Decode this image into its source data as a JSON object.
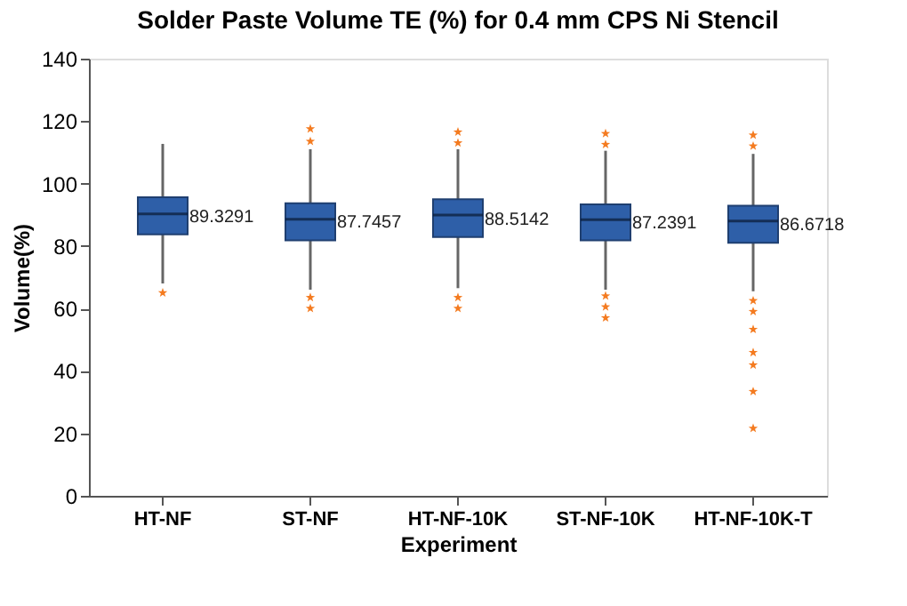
{
  "chart_data": {
    "type": "box",
    "title": "Solder Paste Volume TE (%) for 0.4 mm CPS Ni Stencil",
    "xlabel": "Experiment",
    "ylabel": "Volume(%)",
    "categories": [
      "HT-NF",
      "ST-NF",
      "HT-NF-10K",
      "ST-NF-10K",
      "HT-NF-10K-T"
    ],
    "series": [
      {
        "color": "#2e5fa8",
        "boxes": [
          {
            "low": 68,
            "q1": 83.7,
            "median": 90.3,
            "q3": 95.6,
            "high": 112.7
          },
          {
            "low": 66,
            "q1": 81.8,
            "median": 88.6,
            "q3": 93.7,
            "high": 111
          },
          {
            "low": 66.5,
            "q1": 82.9,
            "median": 89.9,
            "q3": 95,
            "high": 111
          },
          {
            "low": 66,
            "q1": 81.8,
            "median": 88.4,
            "q3": 93.3,
            "high": 110.5
          },
          {
            "low": 65.5,
            "q1": 81,
            "median": 88,
            "q3": 92.9,
            "high": 109.5
          }
        ]
      },
      {
        "type": "scatter",
        "color": "#f47b20",
        "x": [
          "HT-NF",
          "ST-NF",
          "ST-NF",
          "ST-NF",
          "ST-NF",
          "HT-NF-10K",
          "HT-NF-10K",
          "HT-NF-10K",
          "HT-NF-10K",
          "ST-NF-10K",
          "ST-NF-10K",
          "ST-NF-10K",
          "ST-NF-10K",
          "ST-NF-10K",
          "HT-NF-10K-T",
          "HT-NF-10K-T",
          "HT-NF-10K-T",
          "HT-NF-10K-T",
          "HT-NF-10K-T",
          "HT-NF-10K-T",
          "HT-NF-10K-T",
          "HT-NF-10K-T",
          "HT-NF-10K-T"
        ],
        "values": [
          65,
          60,
          63.5,
          113.5,
          117.5,
          60,
          63.5,
          113,
          116.5,
          57,
          60.5,
          64,
          112.5,
          116,
          21.6,
          33.4,
          41.9,
          45.9,
          53.3,
          59,
          62.5,
          112,
          115.5
        ]
      }
    ],
    "marker": "star",
    "annotations": [
      {
        "text": "89.3291",
        "x": "HT-NF",
        "y": 89.3291
      },
      {
        "text": "87.7457",
        "x": "ST-NF",
        "y": 87.7457
      },
      {
        "text": "88.5142",
        "x": "HT-NF-10K",
        "y": 88.5142
      },
      {
        "text": "87.2391",
        "x": "ST-NF-10K",
        "y": 87.2391
      },
      {
        "text": "86.6718",
        "x": "HT-NF-10K-T",
        "y": 86.6718
      }
    ],
    "ylim": [
      0,
      140
    ],
    "yticks": [
      0,
      20,
      40,
      60,
      80,
      100,
      120,
      140
    ],
    "grid": false
  }
}
